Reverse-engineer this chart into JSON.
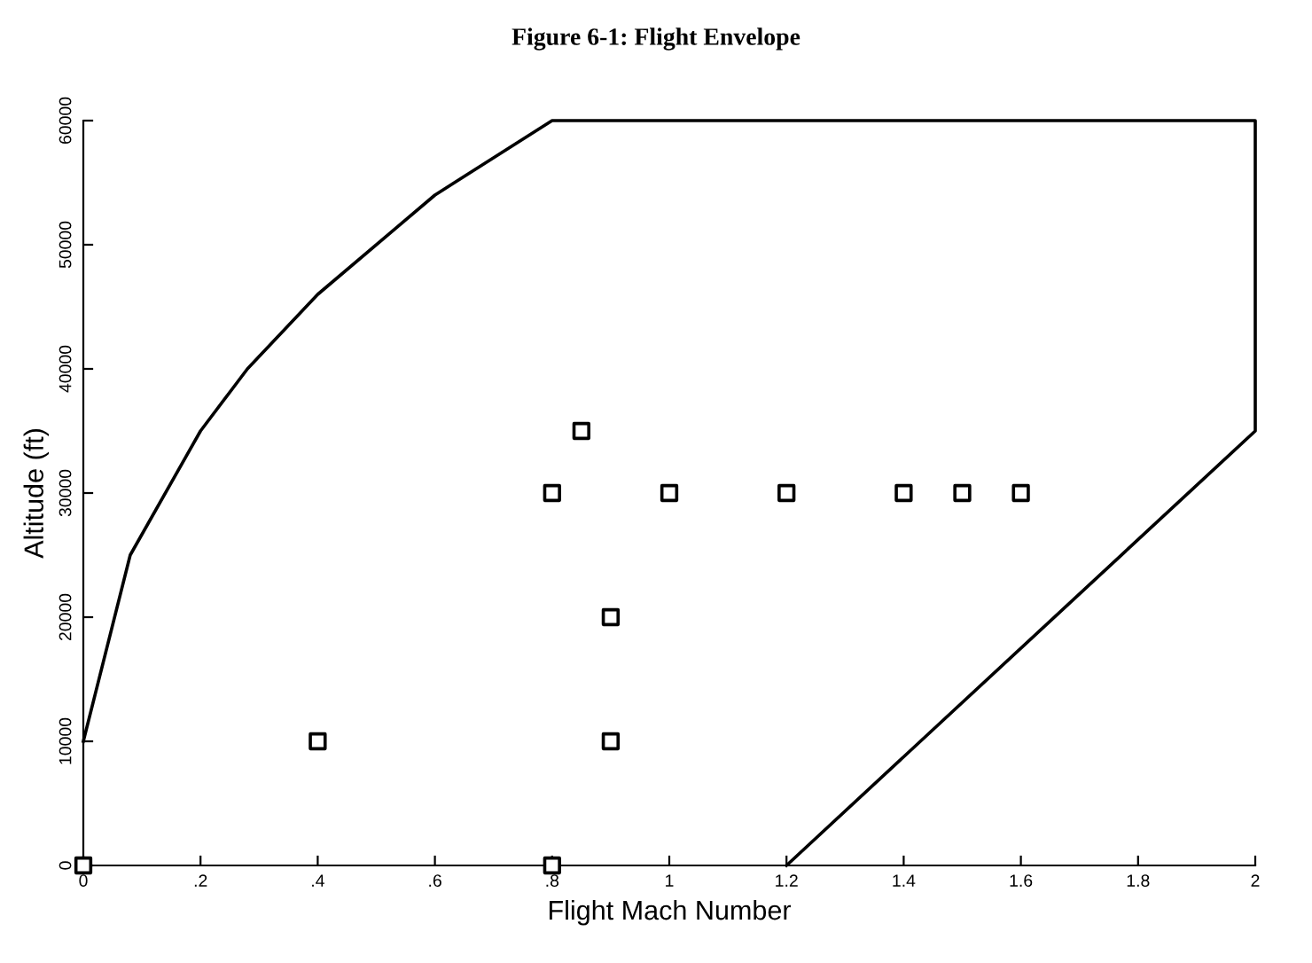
{
  "chart_data": {
    "type": "line",
    "title": "Figure 6-1: Flight Envelope",
    "xlabel": "Flight Mach Number",
    "ylabel": "Altitude (ft)",
    "xlim": [
      0,
      2
    ],
    "ylim": [
      0,
      60000
    ],
    "xticks": [
      0,
      {
        "value": 0.2,
        "label": ".2"
      },
      {
        "value": 0.4,
        "label": ".4"
      },
      {
        "value": 0.6,
        "label": ".6"
      },
      {
        "value": 0.8,
        "label": ".8"
      },
      1,
      1.2,
      1.4,
      1.6,
      1.8,
      2
    ],
    "yticks": [
      0,
      10000,
      20000,
      30000,
      40000,
      50000,
      60000
    ],
    "grid": false,
    "series": [
      {
        "color": "#000000",
        "marker": "none",
        "x": [
          0,
          0.08,
          0.2,
          0.28,
          0.4,
          0.6,
          0.8,
          2,
          2,
          1.2
        ],
        "values": [
          10000,
          25000,
          35000,
          40000,
          46000,
          54000,
          60000,
          60000,
          35000,
          0
        ]
      },
      {
        "type": "scatter",
        "color": "#000000",
        "marker": "square",
        "x": [
          0,
          0.4,
          0.8,
          0.8,
          0.85,
          0.9,
          0.9,
          1.0,
          1.2,
          1.4,
          1.5,
          1.6
        ],
        "values": [
          0,
          10000,
          0,
          30000,
          35000,
          20000,
          10000,
          30000,
          30000,
          30000,
          30000,
          30000
        ]
      }
    ]
  }
}
